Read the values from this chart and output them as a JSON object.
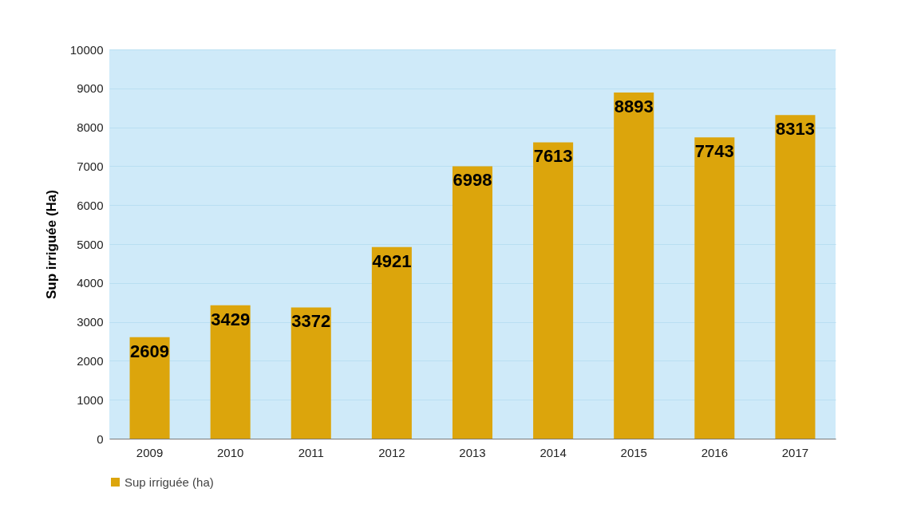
{
  "chart_data": {
    "type": "bar",
    "categories": [
      "2009",
      "2010",
      "2011",
      "2012",
      "2013",
      "2014",
      "2015",
      "2016",
      "2017"
    ],
    "series": [
      {
        "name": "Sup irriguée (ha)",
        "color": "#dca50c",
        "values": [
          2609,
          3429,
          3372,
          4921,
          6998,
          7613,
          8893,
          7743,
          8313
        ]
      }
    ],
    "ylabel": "Sup irriguée (Ha)",
    "ylim": [
      0,
      10000
    ],
    "yticks": [
      0,
      1000,
      2000,
      3000,
      4000,
      5000,
      6000,
      7000,
      8000,
      9000,
      10000
    ],
    "grid": "y",
    "legend": "bottom",
    "data_labels": true
  }
}
